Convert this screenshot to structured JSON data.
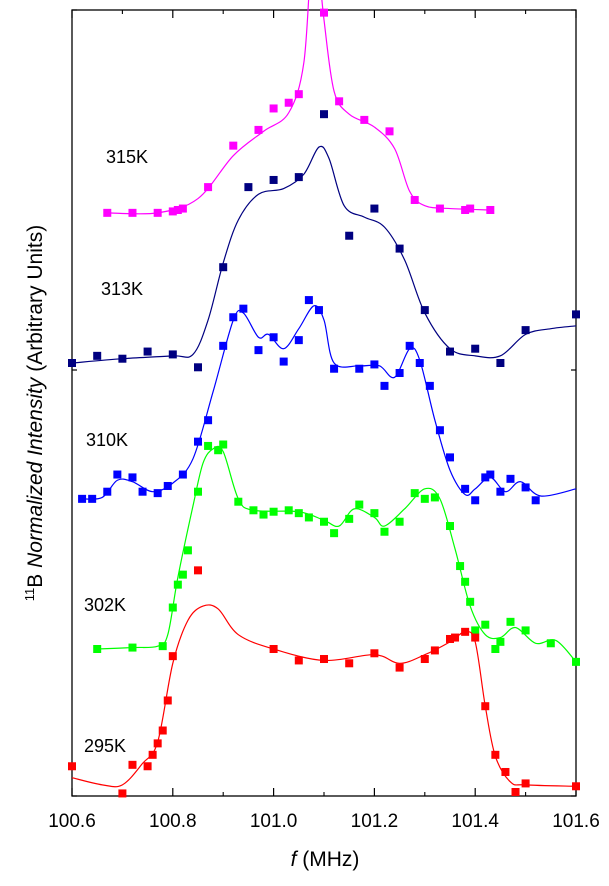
{
  "chart_data": {
    "type": "scatter",
    "title": "",
    "xlabel": {
      "symbol": "f",
      "unit": " (MHz)"
    },
    "ylabel": {
      "superscript": "11",
      "element": "B ",
      "italic": "Normalized Intensity",
      "rest": " (Arbitrary Units)"
    },
    "xlim": [
      100.6,
      101.6
    ],
    "x_ticks": [
      "100.6",
      "100.8",
      "101.0",
      "101.2",
      "101.4",
      "101.6"
    ],
    "grid": false,
    "series": [
      {
        "name": "315K",
        "color": "#ff00ff",
        "offset": 4.0,
        "points": [
          [
            100.67,
            0.05
          ],
          [
            100.72,
            0.05
          ],
          [
            100.77,
            0.05
          ],
          [
            100.8,
            0.06
          ],
          [
            100.81,
            0.07
          ],
          [
            100.82,
            0.08
          ],
          [
            100.87,
            0.23
          ],
          [
            100.92,
            0.52
          ],
          [
            100.97,
            0.63
          ],
          [
            101.0,
            0.78
          ],
          [
            101.03,
            0.82
          ],
          [
            101.05,
            0.88
          ],
          [
            101.07,
            2.04
          ],
          [
            101.1,
            1.45
          ],
          [
            101.13,
            0.83
          ],
          [
            101.18,
            0.7
          ],
          [
            101.23,
            0.62
          ],
          [
            101.28,
            0.14
          ],
          [
            101.33,
            0.08
          ],
          [
            101.38,
            0.07
          ],
          [
            101.39,
            0.08
          ],
          [
            101.43,
            0.07
          ]
        ],
        "curve": [
          [
            100.67,
            0.05
          ],
          [
            100.77,
            0.05
          ],
          [
            100.85,
            0.15
          ],
          [
            100.92,
            0.45
          ],
          [
            100.98,
            0.62
          ],
          [
            101.03,
            0.75
          ],
          [
            101.06,
            1.1
          ],
          [
            101.075,
            1.85
          ],
          [
            101.085,
            1.9
          ],
          [
            101.1,
            1.4
          ],
          [
            101.12,
            0.9
          ],
          [
            101.15,
            0.74
          ],
          [
            101.2,
            0.65
          ],
          [
            101.24,
            0.5
          ],
          [
            101.27,
            0.2
          ],
          [
            101.3,
            0.1
          ],
          [
            101.35,
            0.08
          ],
          [
            101.43,
            0.07
          ]
        ]
      },
      {
        "name": "313K",
        "color": "#000080",
        "offset": 3.0,
        "points": [
          [
            100.6,
            0.0
          ],
          [
            100.65,
            0.05
          ],
          [
            100.7,
            0.03
          ],
          [
            100.75,
            0.08
          ],
          [
            100.8,
            0.06
          ],
          [
            100.85,
            -0.03
          ],
          [
            100.9,
            0.67
          ],
          [
            100.95,
            1.23
          ],
          [
            101.0,
            1.28
          ],
          [
            101.05,
            1.3
          ],
          [
            101.1,
            1.74
          ],
          [
            101.15,
            0.89
          ],
          [
            101.2,
            1.08
          ],
          [
            101.25,
            0.8
          ],
          [
            101.3,
            0.37
          ],
          [
            101.35,
            0.08
          ],
          [
            101.4,
            0.1
          ],
          [
            101.45,
            0.0
          ],
          [
            101.5,
            0.23
          ],
          [
            101.6,
            0.34
          ]
        ],
        "curve": [
          [
            100.6,
            0.0
          ],
          [
            100.7,
            0.03
          ],
          [
            100.8,
            0.05
          ],
          [
            100.84,
            0.06
          ],
          [
            100.87,
            0.3
          ],
          [
            100.9,
            0.7
          ],
          [
            100.93,
            1.0
          ],
          [
            100.97,
            1.18
          ],
          [
            101.02,
            1.22
          ],
          [
            101.06,
            1.32
          ],
          [
            101.09,
            1.51
          ],
          [
            101.11,
            1.43
          ],
          [
            101.14,
            1.1
          ],
          [
            101.18,
            1.02
          ],
          [
            101.22,
            0.95
          ],
          [
            101.26,
            0.72
          ],
          [
            101.3,
            0.35
          ],
          [
            101.35,
            0.1
          ],
          [
            101.4,
            0.05
          ],
          [
            101.45,
            0.05
          ],
          [
            101.5,
            0.2
          ],
          [
            101.55,
            0.24
          ],
          [
            101.6,
            0.26
          ]
        ]
      },
      {
        "name": "310K",
        "color": "#0000ff",
        "offset": 2.0,
        "points": [
          [
            100.62,
            0.05
          ],
          [
            100.64,
            0.05
          ],
          [
            100.67,
            0.1
          ],
          [
            100.69,
            0.22
          ],
          [
            100.72,
            0.2
          ],
          [
            100.74,
            0.1
          ],
          [
            100.77,
            0.09
          ],
          [
            100.79,
            0.14
          ],
          [
            100.82,
            0.22
          ],
          [
            100.85,
            0.45
          ],
          [
            100.87,
            0.6
          ],
          [
            100.9,
            1.12
          ],
          [
            100.92,
            1.32
          ],
          [
            100.94,
            1.38
          ],
          [
            100.97,
            1.09
          ],
          [
            101.0,
            1.18
          ],
          [
            101.02,
            1.01
          ],
          [
            101.05,
            1.16
          ],
          [
            101.07,
            1.44
          ],
          [
            101.09,
            1.37
          ],
          [
            101.12,
            0.96
          ],
          [
            101.17,
            0.96
          ],
          [
            101.2,
            0.99
          ],
          [
            101.22,
            0.84
          ],
          [
            101.25,
            0.93
          ],
          [
            101.27,
            1.12
          ],
          [
            101.29,
            1.0
          ],
          [
            101.31,
            0.84
          ],
          [
            101.33,
            0.53
          ],
          [
            101.35,
            0.34
          ],
          [
            101.38,
            0.12
          ],
          [
            101.4,
            0.04
          ],
          [
            101.42,
            0.2
          ],
          [
            101.43,
            0.22
          ],
          [
            101.45,
            0.1
          ],
          [
            101.47,
            0.19
          ],
          [
            101.5,
            0.13
          ],
          [
            101.52,
            0.04
          ]
        ],
        "curve": [
          [
            100.62,
            0.05
          ],
          [
            100.66,
            0.06
          ],
          [
            100.69,
            0.18
          ],
          [
            100.72,
            0.17
          ],
          [
            100.76,
            0.1
          ],
          [
            100.8,
            0.16
          ],
          [
            100.84,
            0.33
          ],
          [
            100.88,
            0.8
          ],
          [
            100.92,
            1.3
          ],
          [
            100.94,
            1.35
          ],
          [
            100.97,
            1.18
          ],
          [
            100.99,
            1.2
          ],
          [
            101.02,
            1.1
          ],
          [
            101.05,
            1.24
          ],
          [
            101.08,
            1.4
          ],
          [
            101.1,
            1.3
          ],
          [
            101.12,
            1.0
          ],
          [
            101.17,
            0.98
          ],
          [
            101.21,
            0.98
          ],
          [
            101.24,
            0.9
          ],
          [
            101.27,
            1.1
          ],
          [
            101.29,
            1.02
          ],
          [
            101.32,
            0.6
          ],
          [
            101.35,
            0.25
          ],
          [
            101.38,
            0.08
          ],
          [
            101.4,
            0.12
          ],
          [
            101.43,
            0.2
          ],
          [
            101.46,
            0.1
          ],
          [
            101.49,
            0.17
          ],
          [
            101.53,
            0.07
          ],
          [
            101.6,
            0.12
          ]
        ]
      },
      {
        "name": "302K",
        "color": "#00ff00",
        "offset": 1.0,
        "points": [
          [
            100.65,
            0.0
          ],
          [
            100.72,
            0.01
          ],
          [
            100.78,
            0.02
          ],
          [
            100.8,
            0.29
          ],
          [
            100.81,
            0.45
          ],
          [
            100.82,
            0.52
          ],
          [
            100.83,
            0.69
          ],
          [
            100.85,
            1.1
          ],
          [
            100.87,
            1.42
          ],
          [
            100.89,
            1.39
          ],
          [
            100.9,
            1.43
          ],
          [
            100.93,
            1.03
          ],
          [
            100.96,
            0.97
          ],
          [
            100.98,
            0.94
          ],
          [
            101.0,
            0.96
          ],
          [
            101.03,
            0.97
          ],
          [
            101.05,
            0.95
          ],
          [
            101.07,
            0.92
          ],
          [
            101.1,
            0.89
          ],
          [
            101.12,
            0.81
          ],
          [
            101.15,
            0.91
          ],
          [
            101.17,
            1.01
          ],
          [
            101.2,
            0.95
          ],
          [
            101.22,
            0.82
          ],
          [
            101.25,
            0.89
          ],
          [
            101.28,
            1.09
          ],
          [
            101.3,
            1.05
          ],
          [
            101.32,
            1.06
          ],
          [
            101.35,
            0.86
          ],
          [
            101.37,
            0.58
          ],
          [
            101.38,
            0.47
          ],
          [
            101.39,
            0.33
          ],
          [
            101.4,
            0.13
          ],
          [
            101.42,
            0.17
          ],
          [
            101.44,
            0.0
          ],
          [
            101.45,
            0.05
          ],
          [
            101.47,
            0.19
          ],
          [
            101.5,
            0.13
          ],
          [
            101.55,
            0.04
          ],
          [
            101.6,
            -0.09
          ]
        ],
        "curve": [
          [
            100.65,
            0.0
          ],
          [
            100.72,
            0.01
          ],
          [
            100.77,
            0.02
          ],
          [
            100.79,
            0.1
          ],
          [
            100.81,
            0.5
          ],
          [
            100.84,
            1.0
          ],
          [
            100.86,
            1.3
          ],
          [
            100.88,
            1.4
          ],
          [
            100.9,
            1.38
          ],
          [
            100.93,
            1.05
          ],
          [
            100.96,
            0.97
          ],
          [
            101.05,
            0.96
          ],
          [
            101.1,
            0.9
          ],
          [
            101.13,
            0.86
          ],
          [
            101.16,
            0.98
          ],
          [
            101.2,
            0.92
          ],
          [
            101.22,
            0.86
          ],
          [
            101.26,
            0.98
          ],
          [
            101.3,
            1.12
          ],
          [
            101.33,
            1.05
          ],
          [
            101.36,
            0.7
          ],
          [
            101.39,
            0.3
          ],
          [
            101.42,
            0.1
          ],
          [
            101.45,
            0.08
          ],
          [
            101.48,
            0.15
          ],
          [
            101.52,
            0.04
          ],
          [
            101.56,
            0.06
          ],
          [
            101.6,
            -0.09
          ]
        ]
      },
      {
        "name": "295K",
        "color": "#ff0000",
        "offset": 0.0,
        "points": [
          [
            100.6,
            0.18
          ],
          [
            100.7,
            -0.01
          ],
          [
            100.72,
            0.19
          ],
          [
            100.75,
            0.18
          ],
          [
            100.76,
            0.26
          ],
          [
            100.77,
            0.34
          ],
          [
            100.78,
            0.43
          ],
          [
            100.79,
            0.64
          ],
          [
            100.8,
            0.95
          ],
          [
            100.85,
            1.55
          ],
          [
            101.0,
            1.0
          ],
          [
            101.05,
            0.92
          ],
          [
            101.1,
            0.93
          ],
          [
            101.15,
            0.9
          ],
          [
            101.2,
            0.97
          ],
          [
            101.25,
            0.87
          ],
          [
            101.3,
            0.93
          ],
          [
            101.32,
            0.99
          ],
          [
            101.35,
            1.07
          ],
          [
            101.36,
            1.08
          ],
          [
            101.38,
            1.12
          ],
          [
            101.4,
            1.08
          ],
          [
            101.42,
            0.6
          ],
          [
            101.44,
            0.26
          ],
          [
            101.46,
            0.14
          ],
          [
            101.48,
            0.0
          ],
          [
            101.5,
            0.06
          ],
          [
            101.6,
            0.04
          ]
        ],
        "curve": [
          [
            100.6,
            0.1
          ],
          [
            100.66,
            0.05
          ],
          [
            100.7,
            0.05
          ],
          [
            100.74,
            0.2
          ],
          [
            100.77,
            0.35
          ],
          [
            100.8,
            0.9
          ],
          [
            100.83,
            1.2
          ],
          [
            100.86,
            1.3
          ],
          [
            100.89,
            1.28
          ],
          [
            100.93,
            1.1
          ],
          [
            101.0,
            1.0
          ],
          [
            101.1,
            0.92
          ],
          [
            101.2,
            0.96
          ],
          [
            101.25,
            0.9
          ],
          [
            101.3,
            0.96
          ],
          [
            101.35,
            1.05
          ],
          [
            101.38,
            1.12
          ],
          [
            101.4,
            1.05
          ],
          [
            101.42,
            0.6
          ],
          [
            101.44,
            0.25
          ],
          [
            101.47,
            0.07
          ],
          [
            101.5,
            0.05
          ],
          [
            101.6,
            0.04
          ]
        ]
      }
    ]
  }
}
